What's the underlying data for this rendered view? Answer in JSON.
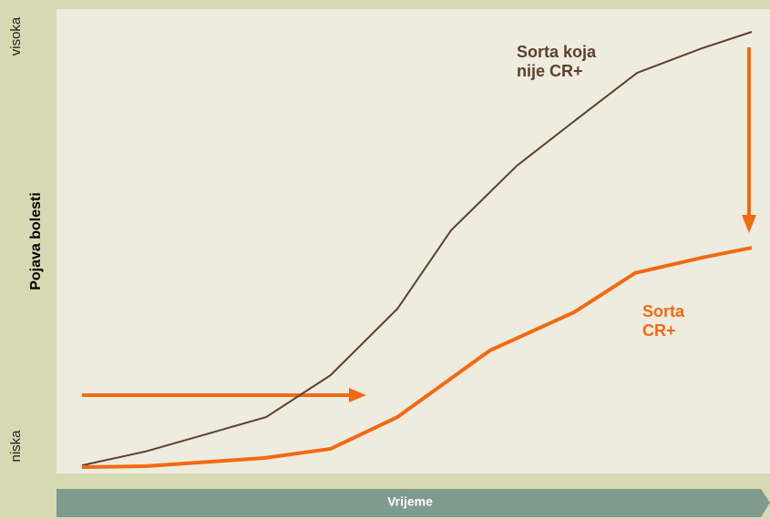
{
  "chart_data": {
    "type": "line",
    "ylabel": "Pojava bolesti",
    "xlabel": "Vrijeme",
    "xlim": [
      0,
      100
    ],
    "ylim": [
      0,
      100
    ],
    "yticks": [
      {
        "value": 0,
        "label": "niska"
      },
      {
        "value": 100,
        "label": "visoka"
      }
    ],
    "series": [
      {
        "name": [
          "Sorta koja",
          "nije CR+"
        ],
        "color": "#5b4030",
        "x": [
          0,
          9.5,
          18.4,
          27.5,
          37.1,
          47.1,
          55.1,
          64.9,
          73.5,
          82.9,
          92.5,
          100
        ],
        "values": [
          0.4,
          3.6,
          7.5,
          11.5,
          21.1,
          36.4,
          54.4,
          69.2,
          79.5,
          90.6,
          96.2,
          100
        ]
      },
      {
        "name": [
          "Sorta",
          "CR+"
        ],
        "color": "#f26a10",
        "x": [
          0,
          9.5,
          27.2,
          37.1,
          47.1,
          60.9,
          73.5,
          82.6,
          92.5,
          100
        ],
        "values": [
          0,
          0.2,
          2.1,
          4.2,
          11.5,
          26.8,
          35.6,
          44.6,
          48.1,
          50.4
        ]
      }
    ]
  }
}
